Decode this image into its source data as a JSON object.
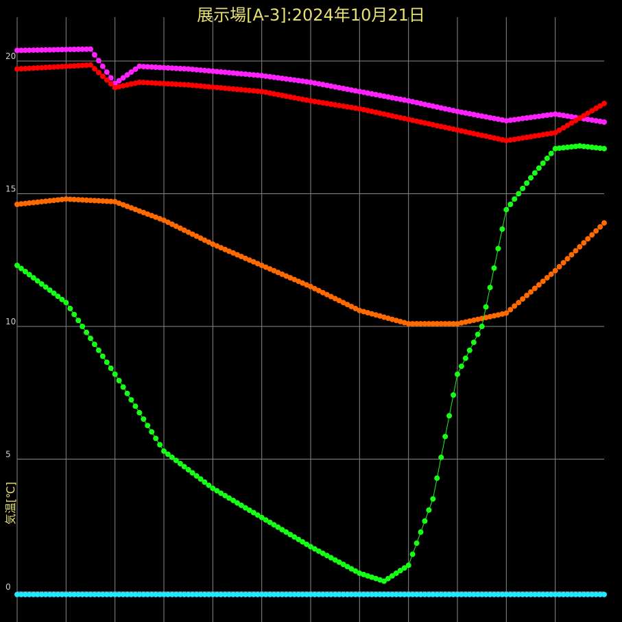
{
  "chart_data": {
    "type": "line",
    "title": "展示場[A-3]:2024年10月21日",
    "ylabel": "気温[℃]",
    "ylim": [
      0,
      20
    ],
    "yticks": [
      "0",
      "5",
      "10",
      "15",
      "20"
    ],
    "grid": true,
    "series": [
      {
        "color": "#ff22ff",
        "x": [
          0,
          3,
          4,
          5,
          7,
          10,
          12,
          14,
          16,
          18,
          20,
          22,
          24
        ],
        "values": [
          20.4,
          20.45,
          19.15,
          19.8,
          19.7,
          19.45,
          19.2,
          18.85,
          18.5,
          18.1,
          17.75,
          18.0,
          17.7
        ]
      },
      {
        "color": "#ff0000",
        "x": [
          0,
          3,
          4,
          5,
          7,
          10,
          12,
          14,
          16,
          18,
          20,
          22,
          24
        ],
        "values": [
          19.7,
          19.85,
          19.0,
          19.2,
          19.1,
          18.85,
          18.5,
          18.2,
          17.8,
          17.4,
          17.0,
          17.3,
          18.4
        ]
      },
      {
        "color": "#ff6a00",
        "x": [
          0,
          2,
          4,
          6,
          8,
          10,
          12,
          14,
          16,
          18,
          20,
          22,
          24
        ],
        "values": [
          14.6,
          14.8,
          14.7,
          14.0,
          13.1,
          12.3,
          11.5,
          10.6,
          10.1,
          10.1,
          10.5,
          12.1,
          13.9
        ]
      },
      {
        "color": "#16ff16",
        "x": [
          0,
          2,
          4,
          6,
          8,
          10,
          12,
          14,
          15,
          16,
          17,
          18,
          19,
          20,
          21,
          22,
          23,
          24
        ],
        "values": [
          12.3,
          10.9,
          8.2,
          5.3,
          3.9,
          2.8,
          1.7,
          0.7,
          0.4,
          1.0,
          3.5,
          8.2,
          10.0,
          14.4,
          15.6,
          16.7,
          16.8,
          16.7
        ]
      },
      {
        "color": "#22e8ff",
        "x": [
          0,
          24
        ],
        "values": [
          -0.1,
          -0.1
        ]
      }
    ]
  }
}
